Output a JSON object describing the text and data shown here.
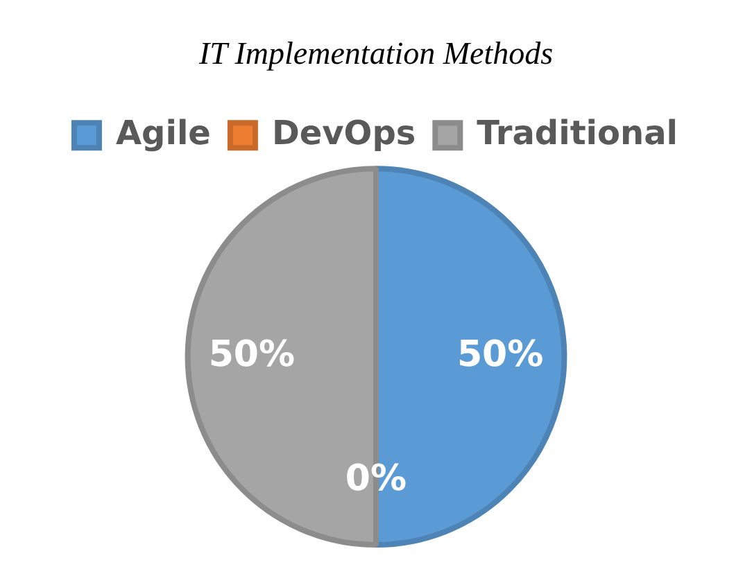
{
  "chart_data": {
    "type": "pie",
    "title": "IT Implementation Methods",
    "categories": [
      "Agile",
      "DevOps",
      "Traditional"
    ],
    "values": [
      50,
      0,
      50
    ],
    "colors": [
      "#5b9bd5",
      "#ed7d31",
      "#a5a5a5"
    ],
    "value_labels": [
      "50%",
      "0%",
      "50%"
    ],
    "legend": "top"
  }
}
